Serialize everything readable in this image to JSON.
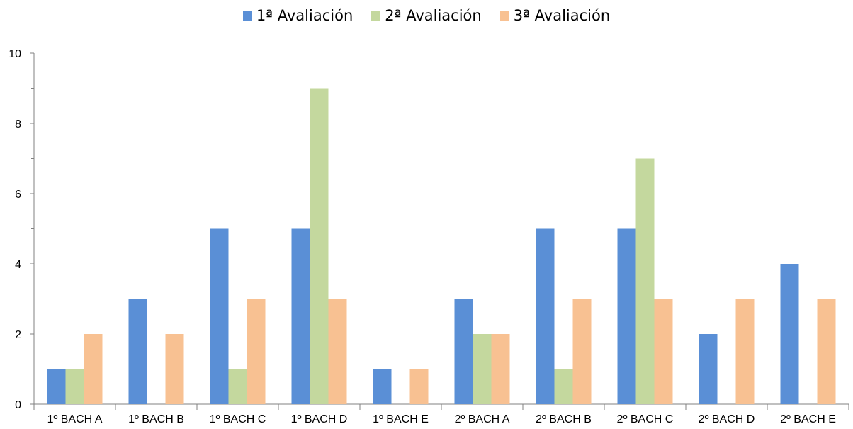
{
  "chart_data": {
    "type": "bar",
    "title": "",
    "xlabel": "",
    "ylabel": "",
    "categories": [
      "1º BACH A",
      "1º BACH B",
      "1º BACH C",
      "1º BACH D",
      "1º BACH E",
      "2º BACH A",
      "2º BACH B",
      "2º BACH C",
      "2º BACH D",
      "2º BACH E"
    ],
    "series": [
      {
        "name": "1ª Avaliación",
        "color": "#5a8fd6",
        "values": [
          1,
          3,
          5,
          5,
          1,
          3,
          5,
          5,
          2,
          4
        ]
      },
      {
        "name": "2ª Avaliación",
        "color": "#c4d89e",
        "values": [
          1,
          0,
          1,
          9,
          0,
          2,
          1,
          7,
          0,
          0
        ]
      },
      {
        "name": "3ª Avaliación",
        "color": "#f8c192",
        "values": [
          2,
          2,
          3,
          3,
          1,
          2,
          3,
          3,
          3,
          3
        ]
      }
    ],
    "ylim": [
      0,
      10
    ],
    "yticks": [
      0,
      2,
      4,
      6,
      8,
      10
    ],
    "grid": false,
    "legend_position": "top"
  }
}
